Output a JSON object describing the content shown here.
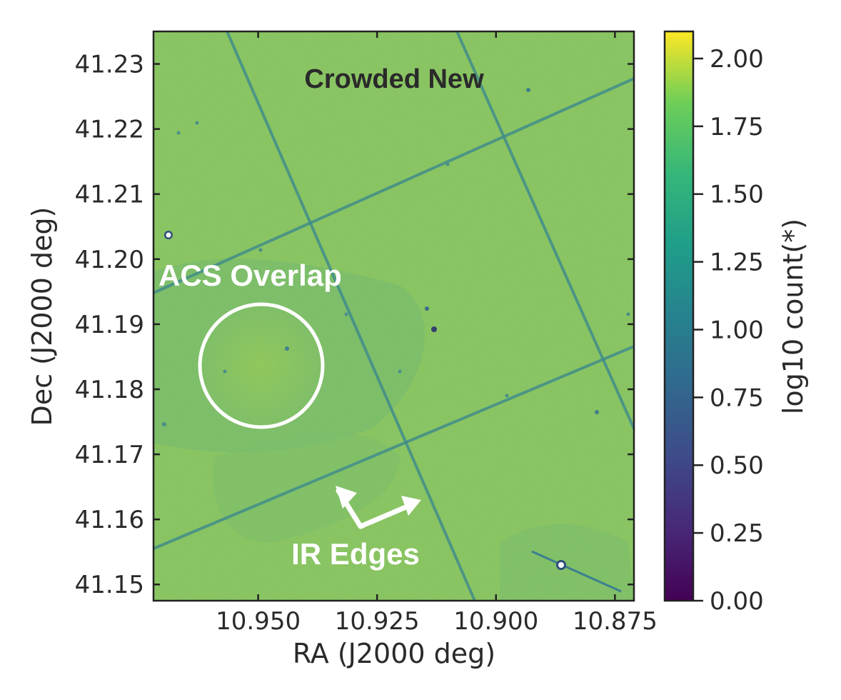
{
  "chart_data": {
    "type": "heatmap",
    "title": "Crowded New",
    "xlabel": "RA (J2000 deg)",
    "ylabel": "Dec (J2000 deg)",
    "xlim": [
      10.972,
      10.871
    ],
    "ylim": [
      41.1475,
      41.235
    ],
    "x_ticks": [
      10.95,
      10.925,
      10.9,
      10.875
    ],
    "x_tick_labels": [
      "10.950",
      "10.925",
      "10.900",
      "10.875"
    ],
    "y_ticks": [
      41.15,
      41.16,
      41.17,
      41.18,
      41.19,
      41.2,
      41.21,
      41.22,
      41.23
    ],
    "y_tick_labels": [
      "41.15",
      "41.16",
      "41.17",
      "41.18",
      "41.19",
      "41.20",
      "41.21",
      "41.22",
      "41.23"
    ],
    "colorbar": {
      "label": "log10 count(*)",
      "colormap": "viridis",
      "range": [
        0.0,
        2.1
      ],
      "ticks": [
        0.0,
        0.25,
        0.5,
        0.75,
        1.0,
        1.25,
        1.5,
        1.75,
        2.0
      ],
      "tick_labels": [
        "0.00",
        "0.25",
        "0.50",
        "0.75",
        "1.00",
        "1.25",
        "1.50",
        "1.75",
        "2.00"
      ]
    },
    "typical_value": 1.55,
    "annotations": [
      {
        "text": "ACS Overlap",
        "shape": "circle",
        "center_ra": 10.949,
        "center_dec": 41.1836,
        "radius_deg": 0.0095
      },
      {
        "text": "IR Edges",
        "shape": "double-arrow"
      }
    ],
    "colors": {
      "field": "#86c45a",
      "field_light": "#98cc52",
      "field_dark": "#6db86a",
      "edge_line": "#3c8a8c",
      "annotation": "#ffffff",
      "cb_0": "#440154",
      "cb_25": "#3b528b",
      "cb_50": "#21918c",
      "cb_75": "#5ec962",
      "cb_100": "#fde725"
    }
  }
}
